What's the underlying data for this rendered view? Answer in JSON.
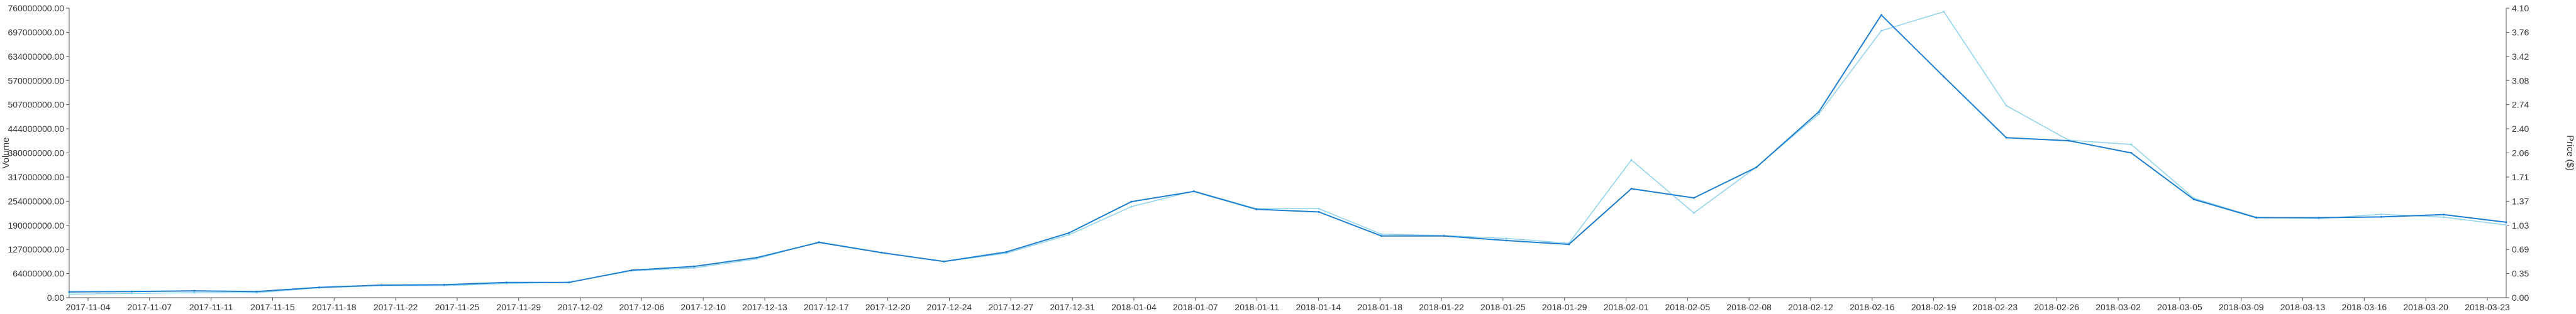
{
  "chart_data": {
    "type": "line",
    "x": [
      "2017-11-04",
      "2017-11-07",
      "2017-11-11",
      "2017-11-15",
      "2017-11-18",
      "2017-11-22",
      "2017-11-25",
      "2017-11-29",
      "2017-12-02",
      "2017-12-06",
      "2017-12-10",
      "2017-12-13",
      "2017-12-17",
      "2017-12-20",
      "2017-12-24",
      "2017-12-27",
      "2017-12-31",
      "2018-01-04",
      "2018-01-07",
      "2018-01-11",
      "2018-01-14",
      "2018-01-18",
      "2018-01-22",
      "2018-01-25",
      "2018-01-29",
      "2018-02-01",
      "2018-02-05",
      "2018-02-08",
      "2018-02-12",
      "2018-02-16",
      "2018-02-19",
      "2018-02-23",
      "2018-02-26",
      "2018-03-02",
      "2018-03-05",
      "2018-03-09",
      "2018-03-13",
      "2018-03-16",
      "2018-03-20",
      "2018-03-23"
    ],
    "x_ticks": [
      "2017-11-04",
      "2017-11-07",
      "2017-11-11",
      "2017-11-15",
      "2017-11-18",
      "2017-11-22",
      "2017-11-25",
      "2017-11-29",
      "2017-12-02",
      "2017-12-06",
      "2017-12-10",
      "2017-12-13",
      "2017-12-17",
      "2017-12-20",
      "2017-12-24",
      "2017-12-27",
      "2017-12-31",
      "2018-01-04",
      "2018-01-07",
      "2018-01-11",
      "2018-01-14",
      "2018-01-18",
      "2018-01-22",
      "2018-01-25",
      "2018-01-29",
      "2018-02-01",
      "2018-02-05",
      "2018-02-08",
      "2018-02-12",
      "2018-02-16",
      "2018-02-19",
      "2018-02-23",
      "2018-02-26",
      "2018-03-02",
      "2018-03-05",
      "2018-03-09",
      "2018-03-13",
      "2018-03-16",
      "2018-03-20",
      "2018-03-23"
    ],
    "y_left_ticks": [
      "0.00",
      "64000000.00",
      "127000000.00",
      "190000000.00",
      "254000000.00",
      "317000000.00",
      "380000000.00",
      "444000000.00",
      "507000000.00",
      "570000000.00",
      "634000000.00",
      "697000000.00",
      "760000000.00"
    ],
    "y_right_ticks": [
      "0.00",
      "0.35",
      "0.69",
      "1.03",
      "1.37",
      "1.71",
      "2.06",
      "2.40",
      "2.74",
      "3.08",
      "3.42",
      "3.76",
      "4.10"
    ],
    "ylim_left": [
      0,
      760000000
    ],
    "ylim_right": [
      0,
      4.1
    ],
    "ylabel_left": "Volume",
    "ylabel_right": "Price ($)",
    "grid": false,
    "legend": "none",
    "series": [
      {
        "axis": "left",
        "color": "#1e7fd0",
        "values": [
          15000000,
          16000000,
          18000000,
          16000000,
          27000000,
          33000000,
          34000000,
          40000000,
          40000000,
          72000000,
          82000000,
          105000000,
          145000000,
          118000000,
          95000000,
          120000000,
          170000000,
          252000000,
          279000000,
          232000000,
          225000000,
          162000000,
          162000000,
          150000000,
          140000000,
          286000000,
          262000000,
          342000000,
          488000000,
          742000000,
          580000000,
          420000000,
          412000000,
          380000000,
          258000000,
          210000000,
          210000000,
          212000000,
          218000000,
          198000000
        ]
      },
      {
        "axis": "right",
        "color": "#8fd3ee",
        "values": [
          0.05,
          0.06,
          0.07,
          0.07,
          0.14,
          0.17,
          0.17,
          0.2,
          0.22,
          0.38,
          0.42,
          0.55,
          0.79,
          0.64,
          0.51,
          0.63,
          0.89,
          1.29,
          1.51,
          1.26,
          1.26,
          0.9,
          0.88,
          0.84,
          0.77,
          1.95,
          1.2,
          1.85,
          2.6,
          3.78,
          4.05,
          2.72,
          2.23,
          2.17,
          1.41,
          1.14,
          1.12,
          1.18,
          1.14,
          1.03
        ]
      }
    ]
  }
}
